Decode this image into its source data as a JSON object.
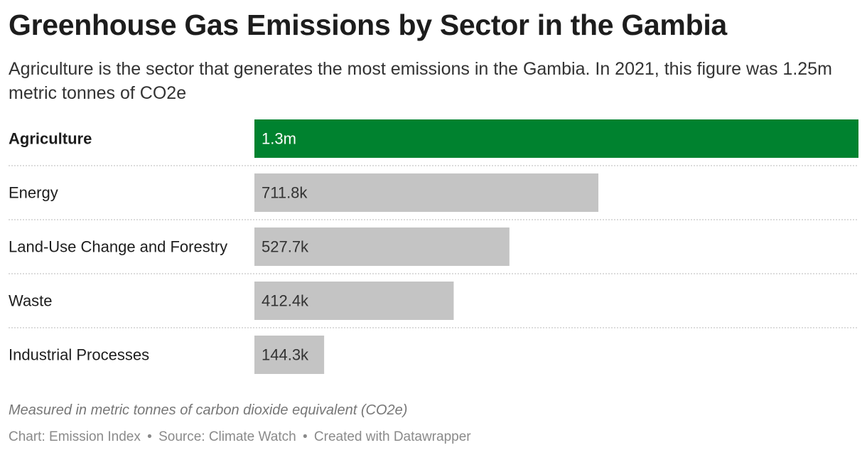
{
  "header": {
    "title": "Greenhouse Gas Emissions by Sector in the Gambia",
    "subtitle": "Agriculture is the sector that generates the most emissions in the Gambia. In 2021, this figure was 1.25m metric tonnes of CO2e"
  },
  "chart_data": {
    "type": "bar",
    "orientation": "horizontal",
    "categories": [
      "Agriculture",
      "Energy",
      "Land-Use Change and Forestry",
      "Waste",
      "Industrial Processes"
    ],
    "values": [
      1250000,
      711800,
      527700,
      412400,
      144300
    ],
    "value_labels": [
      "1.3m",
      "711.8k",
      "527.7k",
      "412.4k",
      "144.3k"
    ],
    "highlight_category": "Agriculture",
    "colors": {
      "highlight": "#00822f",
      "default": "#c4c4c4",
      "highlight_label": "#ffffff",
      "default_label": "#333333",
      "divider": "#c8c8c8"
    },
    "xlim": [
      0,
      1250000
    ],
    "grid": false,
    "legend": "none",
    "title": "Greenhouse Gas Emissions by Sector in the Gambia",
    "xlabel": "",
    "ylabel": ""
  },
  "notes": "Measured in metric tonnes of carbon dioxide equivalent (CO2e)",
  "footer": {
    "chart_credit": "Chart: Emission Index",
    "source": "Source: Climate Watch",
    "created_with": "Created with Datawrapper",
    "separator": "•"
  }
}
